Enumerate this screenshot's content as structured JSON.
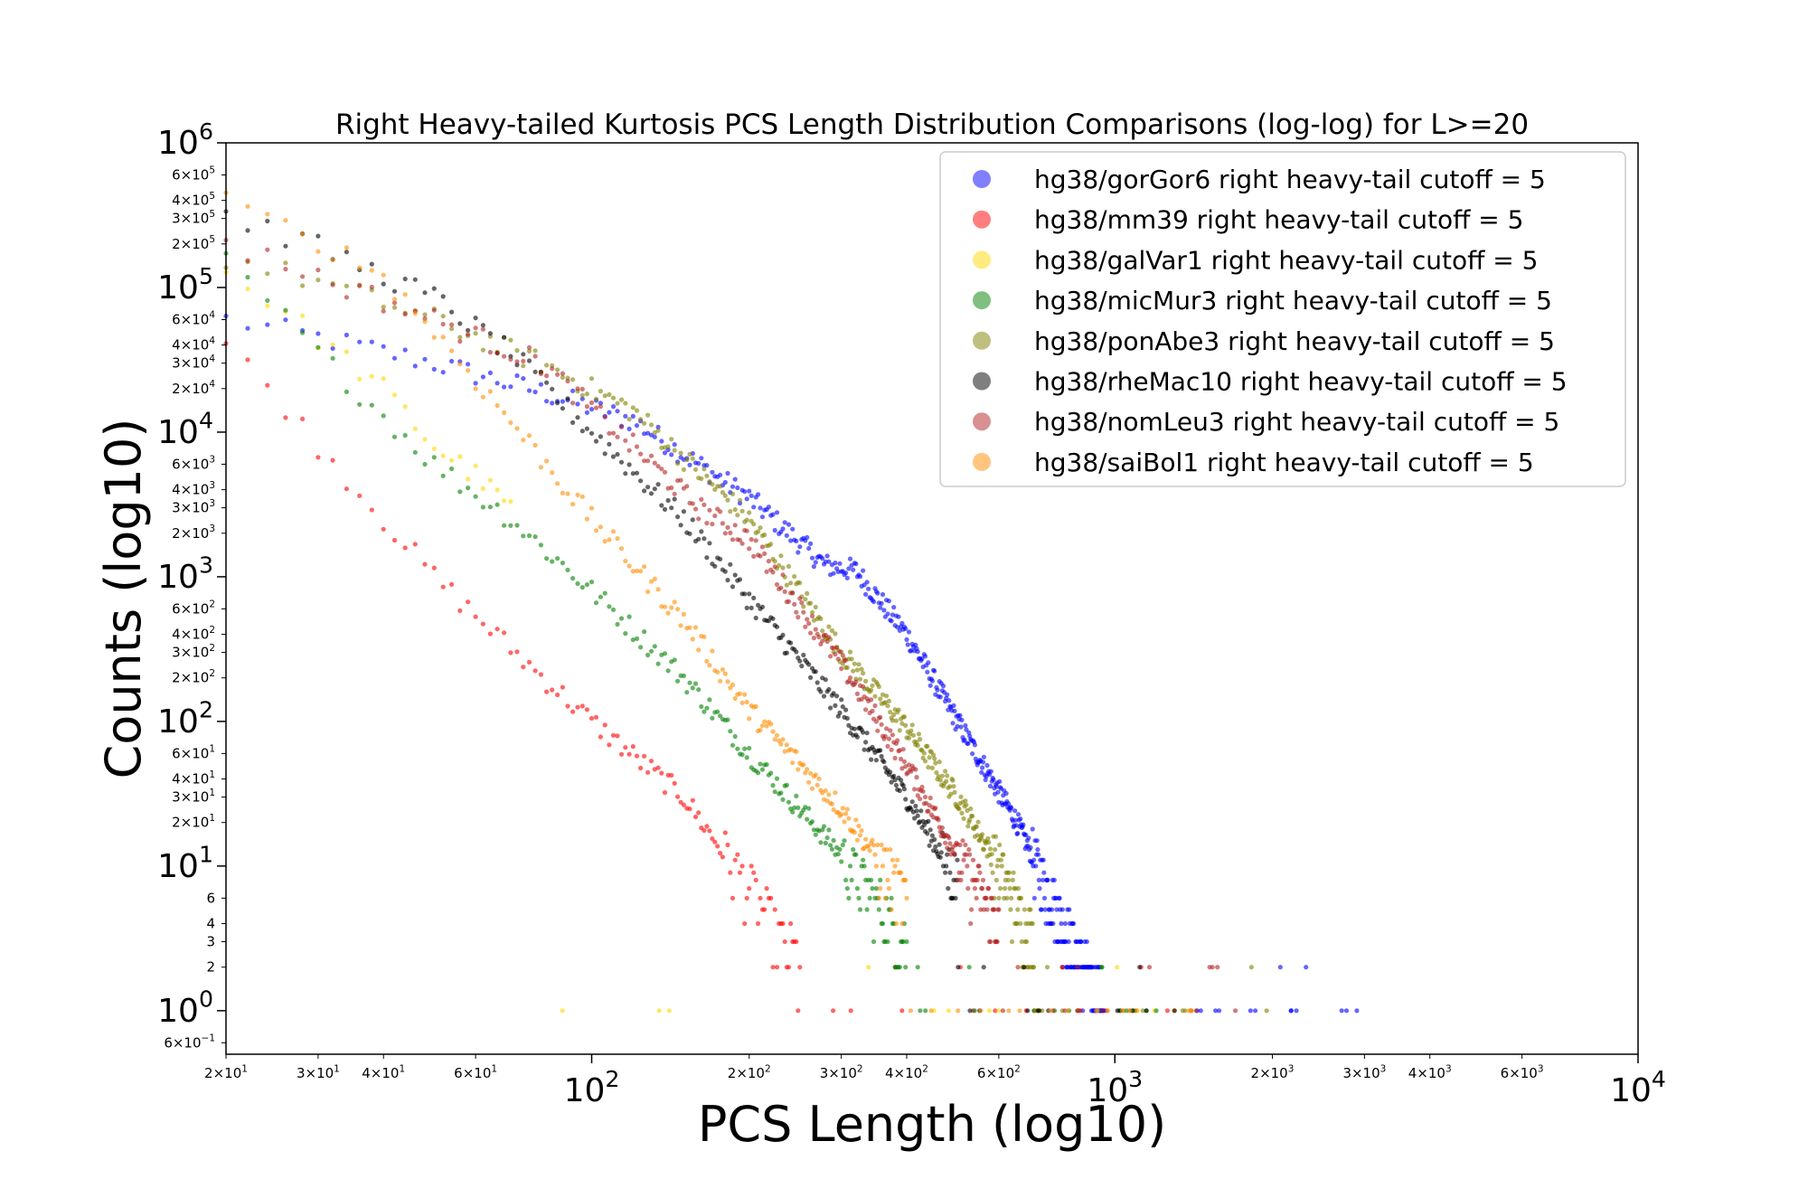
{
  "chart_data": {
    "type": "scatter",
    "title": "Right Heavy-tailed Kurtosis PCS Length Distribution Comparisons (log-log) for L>=20",
    "xlabel": "PCS Length (log10)",
    "ylabel": "Counts (log10)",
    "xscale": "log",
    "yscale": "log",
    "xlim": [
      20,
      10000
    ],
    "ylim": [
      0.5,
      1000000
    ],
    "legend_position": "top-right",
    "x_major_ticks": [
      {
        "value": 100,
        "base": "10",
        "exp": "2"
      },
      {
        "value": 1000,
        "base": "10",
        "exp": "3"
      },
      {
        "value": 10000,
        "base": "10",
        "exp": "4"
      }
    ],
    "x_minor_ticks": [
      {
        "value": 20,
        "mant": "2×10",
        "exp": "1"
      },
      {
        "value": 30,
        "mant": "3×10",
        "exp": "1"
      },
      {
        "value": 40,
        "mant": "4×10",
        "exp": "1"
      },
      {
        "value": 60,
        "mant": "6×10",
        "exp": "1"
      },
      {
        "value": 200,
        "mant": "2×10",
        "exp": "2"
      },
      {
        "value": 300,
        "mant": "3×10",
        "exp": "2"
      },
      {
        "value": 400,
        "mant": "4×10",
        "exp": "2"
      },
      {
        "value": 600,
        "mant": "6×10",
        "exp": "2"
      },
      {
        "value": 2000,
        "mant": "2×10",
        "exp": "3"
      },
      {
        "value": 3000,
        "mant": "3×10",
        "exp": "3"
      },
      {
        "value": 4000,
        "mant": "4×10",
        "exp": "3"
      },
      {
        "value": 6000,
        "mant": "6×10",
        "exp": "3"
      }
    ],
    "y_major_ticks": [
      {
        "value": 1,
        "base": "10",
        "exp": "0"
      },
      {
        "value": 10,
        "base": "10",
        "exp": "1"
      },
      {
        "value": 100,
        "base": "10",
        "exp": "2"
      },
      {
        "value": 1000,
        "base": "10",
        "exp": "3"
      },
      {
        "value": 10000,
        "base": "10",
        "exp": "4"
      },
      {
        "value": 100000,
        "base": "10",
        "exp": "5"
      },
      {
        "value": 1000000,
        "base": "10",
        "exp": "6"
      }
    ],
    "y_minor_ticks": [
      {
        "value": 0.6,
        "mant": "6×10",
        "exp": "−1"
      },
      {
        "value": 2,
        "mant": "2",
        "exp": ""
      },
      {
        "value": 3,
        "mant": "3",
        "exp": ""
      },
      {
        "value": 4,
        "mant": "4",
        "exp": ""
      },
      {
        "value": 6,
        "mant": "6",
        "exp": ""
      },
      {
        "value": 20,
        "mant": "2×10",
        "exp": "1"
      },
      {
        "value": 30,
        "mant": "3×10",
        "exp": "1"
      },
      {
        "value": 40,
        "mant": "4×10",
        "exp": "1"
      },
      {
        "value": 60,
        "mant": "6×10",
        "exp": "1"
      },
      {
        "value": 200,
        "mant": "2×10",
        "exp": "2"
      },
      {
        "value": 300,
        "mant": "3×10",
        "exp": "2"
      },
      {
        "value": 400,
        "mant": "4×10",
        "exp": "2"
      },
      {
        "value": 600,
        "mant": "6×10",
        "exp": "2"
      },
      {
        "value": 2000,
        "mant": "2×10",
        "exp": "3"
      },
      {
        "value": 3000,
        "mant": "3×10",
        "exp": "3"
      },
      {
        "value": 4000,
        "mant": "4×10",
        "exp": "3"
      },
      {
        "value": 6000,
        "mant": "6×10",
        "exp": "3"
      },
      {
        "value": 20000,
        "mant": "2×10",
        "exp": "4"
      },
      {
        "value": 30000,
        "mant": "3×10",
        "exp": "4"
      },
      {
        "value": 40000,
        "mant": "4×10",
        "exp": "4"
      },
      {
        "value": 60000,
        "mant": "6×10",
        "exp": "4"
      },
      {
        "value": 200000,
        "mant": "2×10",
        "exp": "5"
      },
      {
        "value": 300000,
        "mant": "3×10",
        "exp": "5"
      },
      {
        "value": 400000,
        "mant": "4×10",
        "exp": "5"
      },
      {
        "value": 600000,
        "mant": "6×10",
        "exp": "5"
      }
    ],
    "series": [
      {
        "name": "hg38/gorGor6 right heavy-tail cutoff = 5",
        "color": "#0000ff",
        "x": [
          20,
          30,
          50,
          80,
          120,
          200,
          280,
          320,
          400,
          500,
          650,
          800,
          950
        ],
        "y": [
          60000,
          45000,
          30000,
          19000,
          12000,
          3500,
          1200,
          1100,
          400,
          100,
          20,
          4,
          1
        ],
        "tail_max_x": 2900
      },
      {
        "name": "hg38/mm39 right heavy-tail cutoff = 5",
        "color": "#ff0000",
        "x": [
          20,
          25,
          30,
          40,
          50,
          70,
          100,
          150,
          200,
          250
        ],
        "y": [
          40000,
          18000,
          8000,
          2500,
          1000,
          320,
          100,
          30,
          7,
          2
        ],
        "tail_max_x": 1300
      },
      {
        "name": "hg38/galVar1 right heavy-tail cutoff = 5",
        "color": "#ffd700",
        "x": [
          20,
          25,
          30,
          40,
          50,
          60,
          70
        ],
        "y": [
          130000,
          75000,
          45000,
          20000,
          8000,
          5000,
          3000
        ],
        "tail_max_x": 1300
      },
      {
        "name": "hg38/micMur3 right heavy-tail cutoff = 5",
        "color": "#008000",
        "x": [
          20,
          25,
          30,
          40,
          50,
          70,
          100,
          150,
          200,
          300,
          400
        ],
        "y": [
          150000,
          70000,
          35000,
          13000,
          6000,
          2500,
          800,
          200,
          60,
          12,
          3
        ],
        "tail_max_x": 1200
      },
      {
        "name": "hg38/ponAbe3 right heavy-tail cutoff = 5",
        "color": "#808000",
        "x": [
          20,
          30,
          50,
          80,
          120,
          200,
          300,
          400,
          500,
          600,
          700
        ],
        "y": [
          160000,
          110000,
          60000,
          30000,
          14000,
          2500,
          300,
          90,
          30,
          10,
          3
        ],
        "tail_max_x": 1950
      },
      {
        "name": "hg38/rheMac10 right heavy-tail cutoff = 5",
        "color": "#000000",
        "x": [
          20,
          30,
          50,
          70,
          100,
          150,
          200,
          300,
          400,
          500
        ],
        "y": [
          320000,
          190000,
          85000,
          35000,
          10000,
          2500,
          700,
          120,
          30,
          8
        ],
        "tail_max_x": 1300
      },
      {
        "name": "hg38/nomLeu3 right heavy-tail cutoff = 5",
        "color": "#b22222",
        "x": [
          20,
          30,
          50,
          80,
          120,
          160,
          200,
          300,
          400,
          500,
          600
        ],
        "y": [
          200000,
          120000,
          60000,
          30000,
          8000,
          3000,
          1800,
          250,
          50,
          12,
          4
        ],
        "tail_max_x": 1700
      },
      {
        "name": "hg38/saiBol1 right heavy-tail cutoff = 5",
        "color": "#ff8c00",
        "x": [
          20,
          30,
          40,
          50,
          70,
          100,
          150,
          200,
          300,
          400
        ],
        "y": [
          380000,
          210000,
          120000,
          50000,
          12000,
          2500,
          500,
          120,
          25,
          6
        ],
        "tail_max_x": 1400
      }
    ]
  }
}
